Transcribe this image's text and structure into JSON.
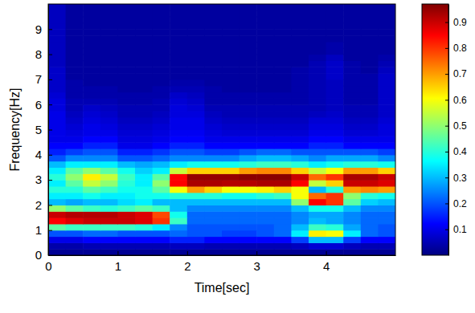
{
  "chart_data": {
    "type": "heatmap",
    "xlabel": "Time[sec]",
    "ylabel": "Frequency[Hz]",
    "xlim": [
      0,
      5
    ],
    "ylim": [
      0,
      10
    ],
    "xticks": [
      0,
      1,
      2,
      3,
      4
    ],
    "yticks": [
      0,
      1,
      2,
      3,
      4,
      5,
      6,
      7,
      8,
      9
    ],
    "x": [
      0.125,
      0.375,
      0.625,
      0.875,
      1.125,
      1.375,
      1.625,
      1.875,
      2.125,
      2.375,
      2.625,
      2.875,
      3.125,
      3.375,
      3.625,
      3.875,
      4.125,
      4.375,
      4.625,
      4.875
    ],
    "y": [
      0.125,
      0.375,
      0.625,
      0.875,
      1.125,
      1.375,
      1.625,
      1.875,
      2.125,
      2.375,
      2.625,
      2.875,
      3.125,
      3.375,
      3.625,
      3.875,
      4.125,
      4.375,
      4.625,
      4.875,
      5.125,
      5.375,
      5.625,
      5.875,
      6.125,
      6.375,
      6.625,
      6.875,
      7.125,
      7.375,
      7.625,
      7.875,
      8.125,
      8.375,
      8.625,
      8.875,
      9.125,
      9.375,
      9.625,
      9.875
    ],
    "values": [
      [
        0.02,
        0.02,
        0.02,
        0.02,
        0.02,
        0.02,
        0.02,
        0.02,
        0.02,
        0.02,
        0.02,
        0.02,
        0.02,
        0.02,
        0.02,
        0.02,
        0.02,
        0.02,
        0.02,
        0.02
      ],
      [
        0.04,
        0.04,
        0.05,
        0.05,
        0.05,
        0.05,
        0.05,
        0.06,
        0.06,
        0.05,
        0.05,
        0.05,
        0.05,
        0.05,
        0.06,
        0.08,
        0.08,
        0.06,
        0.05,
        0.05
      ],
      [
        0.1,
        0.1,
        0.12,
        0.12,
        0.12,
        0.12,
        0.12,
        0.15,
        0.15,
        0.12,
        0.12,
        0.12,
        0.12,
        0.12,
        0.18,
        0.3,
        0.3,
        0.18,
        0.12,
        0.12
      ],
      [
        0.2,
        0.2,
        0.22,
        0.22,
        0.2,
        0.2,
        0.2,
        0.22,
        0.2,
        0.2,
        0.18,
        0.18,
        0.2,
        0.22,
        0.35,
        0.62,
        0.6,
        0.35,
        0.22,
        0.2
      ],
      [
        0.45,
        0.42,
        0.42,
        0.42,
        0.42,
        0.4,
        0.35,
        0.25,
        0.2,
        0.2,
        0.2,
        0.2,
        0.2,
        0.22,
        0.3,
        0.42,
        0.4,
        0.28,
        0.22,
        0.2
      ],
      [
        0.85,
        0.88,
        0.9,
        0.9,
        0.9,
        0.88,
        0.8,
        0.42,
        0.22,
        0.22,
        0.22,
        0.22,
        0.22,
        0.22,
        0.25,
        0.3,
        0.28,
        0.25,
        0.22,
        0.22
      ],
      [
        0.9,
        0.92,
        0.92,
        0.92,
        0.9,
        0.88,
        0.78,
        0.38,
        0.22,
        0.22,
        0.22,
        0.22,
        0.22,
        0.22,
        0.25,
        0.28,
        0.28,
        0.25,
        0.22,
        0.22
      ],
      [
        0.5,
        0.45,
        0.42,
        0.4,
        0.42,
        0.45,
        0.42,
        0.3,
        0.25,
        0.25,
        0.25,
        0.25,
        0.25,
        0.25,
        0.3,
        0.38,
        0.38,
        0.3,
        0.25,
        0.25
      ],
      [
        0.3,
        0.28,
        0.3,
        0.3,
        0.33,
        0.35,
        0.3,
        0.3,
        0.3,
        0.3,
        0.3,
        0.3,
        0.3,
        0.3,
        0.5,
        0.85,
        0.8,
        0.45,
        0.32,
        0.3
      ],
      [
        0.35,
        0.35,
        0.38,
        0.35,
        0.35,
        0.38,
        0.38,
        0.4,
        0.4,
        0.4,
        0.38,
        0.38,
        0.4,
        0.42,
        0.6,
        0.75,
        0.8,
        0.5,
        0.4,
        0.38
      ],
      [
        0.4,
        0.4,
        0.45,
        0.42,
        0.38,
        0.38,
        0.45,
        0.6,
        0.7,
        0.65,
        0.6,
        0.6,
        0.62,
        0.65,
        0.6,
        0.3,
        0.4,
        0.7,
        0.72,
        0.7
      ],
      [
        0.35,
        0.45,
        0.55,
        0.5,
        0.4,
        0.35,
        0.5,
        0.85,
        0.93,
        0.93,
        0.92,
        0.92,
        0.93,
        0.93,
        0.85,
        0.55,
        0.65,
        0.9,
        0.9,
        0.88
      ],
      [
        0.4,
        0.5,
        0.62,
        0.55,
        0.42,
        0.35,
        0.45,
        0.85,
        0.95,
        0.95,
        0.95,
        0.96,
        0.96,
        0.96,
        0.9,
        0.75,
        0.8,
        0.93,
        0.93,
        0.9
      ],
      [
        0.35,
        0.45,
        0.5,
        0.45,
        0.38,
        0.32,
        0.35,
        0.55,
        0.65,
        0.65,
        0.65,
        0.7,
        0.72,
        0.72,
        0.65,
        0.55,
        0.6,
        0.7,
        0.7,
        0.65
      ],
      [
        0.3,
        0.35,
        0.35,
        0.35,
        0.3,
        0.28,
        0.3,
        0.35,
        0.38,
        0.38,
        0.38,
        0.4,
        0.42,
        0.42,
        0.4,
        0.35,
        0.38,
        0.4,
        0.4,
        0.38
      ],
      [
        0.2,
        0.25,
        0.25,
        0.25,
        0.2,
        0.2,
        0.22,
        0.25,
        0.25,
        0.25,
        0.25,
        0.28,
        0.3,
        0.3,
        0.28,
        0.25,
        0.28,
        0.28,
        0.28,
        0.25
      ],
      [
        0.15,
        0.18,
        0.2,
        0.2,
        0.15,
        0.15,
        0.17,
        0.2,
        0.2,
        0.18,
        0.18,
        0.2,
        0.22,
        0.22,
        0.2,
        0.2,
        0.2,
        0.2,
        0.2,
        0.18
      ],
      [
        0.12,
        0.12,
        0.15,
        0.15,
        0.1,
        0.1,
        0.12,
        0.15,
        0.15,
        0.12,
        0.12,
        0.12,
        0.12,
        0.12,
        0.12,
        0.15,
        0.15,
        0.12,
        0.12,
        0.12
      ],
      [
        0.1,
        0.1,
        0.12,
        0.12,
        0.09,
        0.09,
        0.1,
        0.12,
        0.12,
        0.1,
        0.1,
        0.1,
        0.1,
        0.1,
        0.1,
        0.12,
        0.12,
        0.1,
        0.1,
        0.1
      ],
      [
        0.1,
        0.09,
        0.1,
        0.1,
        0.08,
        0.08,
        0.09,
        0.11,
        0.11,
        0.09,
        0.08,
        0.08,
        0.08,
        0.08,
        0.08,
        0.1,
        0.1,
        0.08,
        0.08,
        0.09
      ],
      [
        0.1,
        0.08,
        0.1,
        0.09,
        0.07,
        0.07,
        0.08,
        0.1,
        0.1,
        0.08,
        0.07,
        0.07,
        0.07,
        0.07,
        0.07,
        0.09,
        0.09,
        0.07,
        0.07,
        0.09
      ],
      [
        0.1,
        0.07,
        0.09,
        0.08,
        0.06,
        0.06,
        0.07,
        0.1,
        0.1,
        0.07,
        0.06,
        0.06,
        0.06,
        0.06,
        0.06,
        0.08,
        0.08,
        0.06,
        0.06,
        0.08
      ],
      [
        0.1,
        0.06,
        0.08,
        0.07,
        0.05,
        0.05,
        0.06,
        0.09,
        0.09,
        0.06,
        0.05,
        0.05,
        0.05,
        0.05,
        0.05,
        0.06,
        0.07,
        0.05,
        0.05,
        0.07
      ],
      [
        0.09,
        0.05,
        0.07,
        0.06,
        0.05,
        0.05,
        0.05,
        0.09,
        0.08,
        0.05,
        0.05,
        0.05,
        0.05,
        0.05,
        0.05,
        0.05,
        0.06,
        0.05,
        0.05,
        0.07
      ],
      [
        0.09,
        0.05,
        0.05,
        0.05,
        0.04,
        0.04,
        0.05,
        0.08,
        0.07,
        0.04,
        0.04,
        0.04,
        0.04,
        0.04,
        0.04,
        0.05,
        0.06,
        0.04,
        0.04,
        0.07
      ],
      [
        0.08,
        0.04,
        0.04,
        0.04,
        0.04,
        0.04,
        0.04,
        0.07,
        0.06,
        0.04,
        0.04,
        0.04,
        0.04,
        0.04,
        0.04,
        0.05,
        0.06,
        0.04,
        0.04,
        0.07
      ],
      [
        0.07,
        0.04,
        0.04,
        0.04,
        0.03,
        0.03,
        0.04,
        0.05,
        0.05,
        0.04,
        0.03,
        0.03,
        0.03,
        0.03,
        0.04,
        0.05,
        0.06,
        0.04,
        0.04,
        0.07
      ],
      [
        0.07,
        0.04,
        0.03,
        0.03,
        0.03,
        0.03,
        0.03,
        0.04,
        0.04,
        0.03,
        0.03,
        0.03,
        0.03,
        0.03,
        0.04,
        0.05,
        0.06,
        0.04,
        0.04,
        0.07
      ],
      [
        0.07,
        0.03,
        0.03,
        0.03,
        0.03,
        0.03,
        0.03,
        0.03,
        0.03,
        0.03,
        0.03,
        0.03,
        0.03,
        0.03,
        0.04,
        0.05,
        0.07,
        0.04,
        0.04,
        0.07
      ],
      [
        0.07,
        0.03,
        0.03,
        0.03,
        0.03,
        0.03,
        0.03,
        0.03,
        0.03,
        0.03,
        0.03,
        0.03,
        0.03,
        0.03,
        0.04,
        0.05,
        0.07,
        0.04,
        0.03,
        0.06
      ],
      [
        0.06,
        0.03,
        0.03,
        0.03,
        0.03,
        0.03,
        0.03,
        0.03,
        0.03,
        0.03,
        0.03,
        0.03,
        0.03,
        0.03,
        0.03,
        0.05,
        0.07,
        0.04,
        0.03,
        0.05
      ],
      [
        0.06,
        0.03,
        0.03,
        0.03,
        0.03,
        0.03,
        0.03,
        0.03,
        0.03,
        0.03,
        0.03,
        0.03,
        0.03,
        0.03,
        0.03,
        0.04,
        0.06,
        0.03,
        0.03,
        0.04
      ],
      [
        0.06,
        0.03,
        0.03,
        0.03,
        0.03,
        0.03,
        0.03,
        0.03,
        0.03,
        0.03,
        0.03,
        0.03,
        0.03,
        0.03,
        0.03,
        0.03,
        0.04,
        0.03,
        0.03,
        0.03
      ],
      [
        0.06,
        0.03,
        0.03,
        0.03,
        0.03,
        0.03,
        0.03,
        0.03,
        0.03,
        0.03,
        0.03,
        0.03,
        0.03,
        0.03,
        0.03,
        0.03,
        0.04,
        0.03,
        0.03,
        0.03
      ],
      [
        0.06,
        0.03,
        0.03,
        0.03,
        0.03,
        0.03,
        0.03,
        0.03,
        0.03,
        0.03,
        0.03,
        0.03,
        0.03,
        0.03,
        0.03,
        0.03,
        0.03,
        0.03,
        0.03,
        0.03
      ],
      [
        0.06,
        0.03,
        0.03,
        0.03,
        0.03,
        0.03,
        0.03,
        0.03,
        0.03,
        0.03,
        0.03,
        0.03,
        0.03,
        0.03,
        0.03,
        0.03,
        0.03,
        0.03,
        0.03,
        0.03
      ],
      [
        0.06,
        0.03,
        0.03,
        0.03,
        0.03,
        0.03,
        0.03,
        0.03,
        0.03,
        0.03,
        0.03,
        0.03,
        0.03,
        0.03,
        0.03,
        0.03,
        0.03,
        0.03,
        0.03,
        0.03
      ],
      [
        0.06,
        0.03,
        0.03,
        0.03,
        0.03,
        0.03,
        0.03,
        0.03,
        0.03,
        0.03,
        0.03,
        0.03,
        0.03,
        0.03,
        0.03,
        0.03,
        0.03,
        0.03,
        0.03,
        0.03
      ],
      [
        0.06,
        0.03,
        0.03,
        0.03,
        0.03,
        0.03,
        0.03,
        0.03,
        0.03,
        0.03,
        0.03,
        0.03,
        0.03,
        0.03,
        0.03,
        0.03,
        0.03,
        0.03,
        0.03,
        0.03
      ],
      [
        0.06,
        0.03,
        0.03,
        0.03,
        0.03,
        0.03,
        0.03,
        0.03,
        0.03,
        0.03,
        0.03,
        0.03,
        0.03,
        0.03,
        0.03,
        0.03,
        0.03,
        0.03,
        0.03,
        0.03
      ]
    ],
    "colorbar": {
      "range": [
        0,
        0.97
      ],
      "ticks": [
        0.1,
        0.2,
        0.3,
        0.4,
        0.5,
        0.6,
        0.7,
        0.8,
        0.9
      ]
    }
  }
}
